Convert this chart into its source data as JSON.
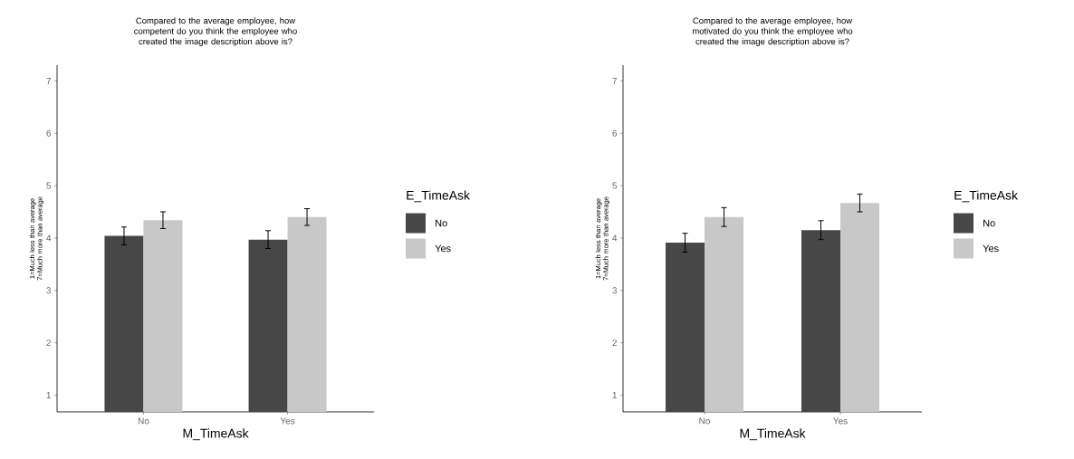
{
  "chart_data": [
    {
      "type": "bar",
      "title": "Compared to the average employee, how competent do you think the employee who created the image description above is?",
      "xlabel": "M_TimeAsk",
      "ylabel": "1=Much less than average 7=Much more than average",
      "legend_title": "E_TimeAsk",
      "categories": [
        "No",
        "Yes"
      ],
      "series": [
        {
          "name": "No",
          "color": "#474747",
          "values": [
            4.04,
            3.97
          ],
          "errors": [
            0.17,
            0.17
          ]
        },
        {
          "name": "Yes",
          "color": "#c8c8c8",
          "values": [
            4.34,
            4.4
          ],
          "errors": [
            0.16,
            0.16
          ]
        }
      ],
      "ylim": [
        0.68,
        7.3
      ],
      "yticks": [
        1,
        2,
        3,
        4,
        5,
        6,
        7
      ],
      "legend": "right"
    },
    {
      "type": "bar",
      "title": "Compared to the average employee, how motivated do you think the employee who created the image description above is?",
      "xlabel": "M_TimeAsk",
      "ylabel": "1=Much less than average 7=Much more than average",
      "legend_title": "E_TimeAsk",
      "categories": [
        "No",
        "Yes"
      ],
      "series": [
        {
          "name": "No",
          "color": "#474747",
          "values": [
            3.91,
            4.15
          ],
          "errors": [
            0.18,
            0.18
          ]
        },
        {
          "name": "Yes",
          "color": "#c8c8c8",
          "values": [
            4.4,
            4.67
          ],
          "errors": [
            0.18,
            0.17
          ]
        }
      ],
      "ylim": [
        0.68,
        7.3
      ],
      "yticks": [
        1,
        2,
        3,
        4,
        5,
        6,
        7
      ],
      "legend": "right"
    }
  ]
}
